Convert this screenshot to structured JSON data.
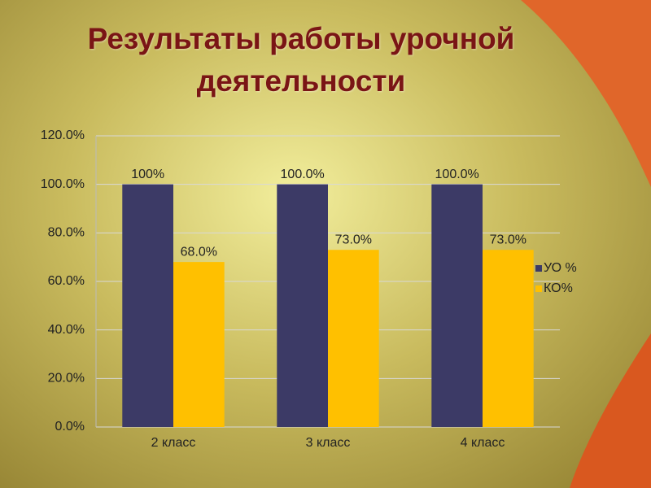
{
  "chart_data": {
    "type": "bar",
    "title": "Результаты работы урочной деятельности",
    "categories": [
      "2 класс",
      "3 класс",
      "4 класс"
    ],
    "series": [
      {
        "name": "УО %",
        "color": "#3c3a66",
        "values": [
          100,
          100,
          100
        ],
        "value_labels": [
          "100%",
          "100.0%",
          "100.0%"
        ]
      },
      {
        "name": "КО%",
        "color": "#ffc000",
        "values": [
          68,
          73,
          73
        ],
        "value_labels": [
          "68.0%",
          "73.0%",
          "73.0%"
        ]
      }
    ],
    "ylim": [
      0,
      120
    ],
    "yticks": [
      {
        "value": 0,
        "label": "0.0%"
      },
      {
        "value": 20,
        "label": "20.0%"
      },
      {
        "value": 40,
        "label": "40.0%"
      },
      {
        "value": 60,
        "label": "60.0%"
      },
      {
        "value": 80,
        "label": "80.0%"
      },
      {
        "value": 100,
        "label": "100.0%"
      },
      {
        "value": 120,
        "label": "120.0%"
      }
    ],
    "grid": true,
    "legend": "right"
  }
}
